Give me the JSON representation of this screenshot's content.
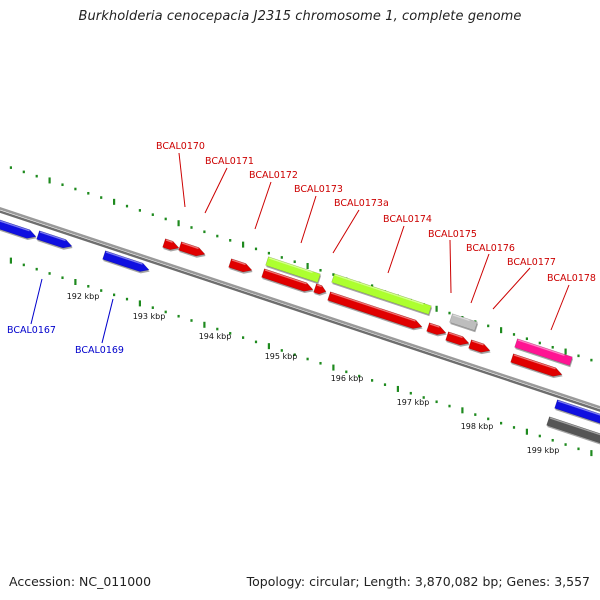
{
  "title": "Burkholderia cenocepacia J2315 chromosome 1, complete genome",
  "footer": {
    "accession": "Accession: NC_011000",
    "stats": "Topology: circular; Length: 3,870,082 bp; Genes: 3,557"
  },
  "colors": {
    "backbone_light": "#9a9a9a",
    "backbone_dark": "#6e6e6e",
    "tick": "#1e8a1e",
    "cds_forward": "#e00000",
    "cds_reverse": "#1010e0",
    "label_forward": "#cc0000",
    "label_reverse": "#0000cc",
    "rrna": "#adff2f",
    "pseudo": "#bdbdbd",
    "magenta": "#ff1493",
    "dark_gene": "#555555"
  },
  "scale": {
    "unit": "kbp",
    "tick_labels": [
      "192 kbp",
      "193 kbp",
      "194 kbp",
      "195 kbp",
      "196 kbp",
      "197 kbp",
      "198 kbp",
      "199 kbp"
    ]
  },
  "genes": [
    {
      "name": "BCAL0167",
      "strand": "reverse"
    },
    {
      "name": "BCAL0169",
      "strand": "reverse"
    },
    {
      "name": "BCAL0170",
      "strand": "forward"
    },
    {
      "name": "BCAL0171",
      "strand": "forward"
    },
    {
      "name": "BCAL0172",
      "strand": "forward"
    },
    {
      "name": "BCAL0173",
      "strand": "forward"
    },
    {
      "name": "BCAL0173a",
      "strand": "forward"
    },
    {
      "name": "BCAL0174",
      "strand": "forward"
    },
    {
      "name": "BCAL0175",
      "strand": "forward"
    },
    {
      "name": "BCAL0176",
      "strand": "forward"
    },
    {
      "name": "BCAL0177",
      "strand": "forward"
    },
    {
      "name": "BCAL0178",
      "strand": "forward"
    }
  ]
}
